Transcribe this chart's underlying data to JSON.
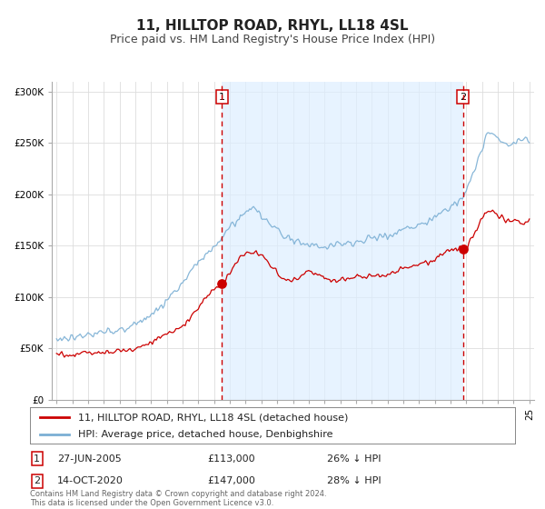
{
  "title": "11, HILLTOP ROAD, RHYL, LL18 4SL",
  "subtitle": "Price paid vs. HM Land Registry's House Price Index (HPI)",
  "red_label": "11, HILLTOP ROAD, RHYL, LL18 4SL (detached house)",
  "blue_label": "HPI: Average price, detached house, Denbighshire",
  "annotation1_date": "27-JUN-2005",
  "annotation1_price": "£113,000",
  "annotation1_hpi": "26% ↓ HPI",
  "annotation1_year": 2005.49,
  "annotation1_value": 113000,
  "annotation2_date": "14-OCT-2020",
  "annotation2_price": "£147,000",
  "annotation2_hpi": "28% ↓ HPI",
  "annotation2_year": 2020.79,
  "annotation2_value": 147000,
  "footer": "Contains HM Land Registry data © Crown copyright and database right 2024.\nThis data is licensed under the Open Government Licence v3.0.",
  "ylim": [
    0,
    310000
  ],
  "xlim_start": 1994.7,
  "xlim_end": 2025.3,
  "background_color": "#ffffff",
  "plot_bg_color": "#ffffff",
  "red_color": "#cc0000",
  "blue_color": "#7bafd4",
  "shade_color": "#ddeeff",
  "vline_color": "#cc0000",
  "grid_color": "#dddddd",
  "title_fontsize": 11,
  "subtitle_fontsize": 9,
  "tick_fontsize": 7.5
}
